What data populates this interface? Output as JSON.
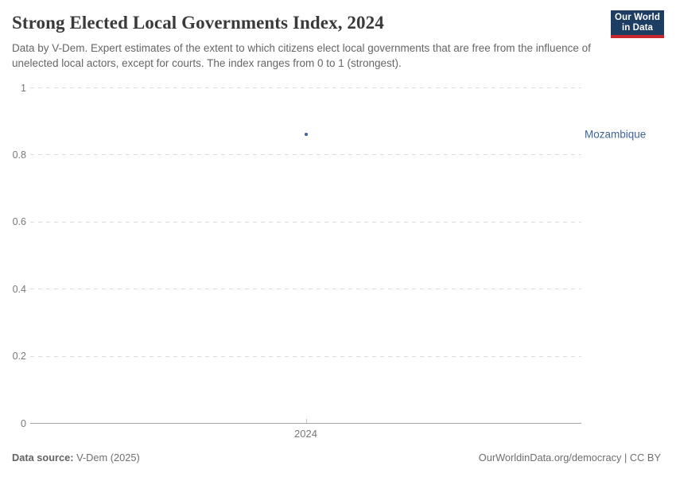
{
  "header": {
    "title": "Strong Elected Local Governments Index, 2024",
    "subtitle": "Data by V-Dem. Expert estimates of the extent to which citizens elect local governments that are free from the influence of unelected local actors, except for courts. The index ranges from 0 to 1 (strongest).",
    "logo": {
      "line1": "Our World",
      "line2": "in Data"
    }
  },
  "chart_data": {
    "type": "scatter",
    "title": "Strong Elected Local Governments Index, 2024",
    "x": [
      2024
    ],
    "xticks": [
      "2024"
    ],
    "series": [
      {
        "name": "Mozambique",
        "values": [
          0.86
        ]
      }
    ],
    "xlabel": "",
    "ylabel": "",
    "ylim": [
      0,
      1
    ],
    "yticks": [
      1,
      0.8,
      0.6,
      0.4,
      0.2,
      0
    ],
    "grid": "horizontal-dashed",
    "legend_position": "right-entity-label"
  },
  "colors": {
    "accent_blue": "#3d639c",
    "logo_navy": "#1d3d63",
    "logo_red": "#c5272d",
    "gridline": "#dcdcdc",
    "axis_line": "#a3a3a3",
    "tick_text": "#787878"
  },
  "footer": {
    "source_label": "Data source:",
    "source_value": " V-Dem (2025)",
    "credit": "OurWorldinData.org/democracy | CC BY"
  }
}
